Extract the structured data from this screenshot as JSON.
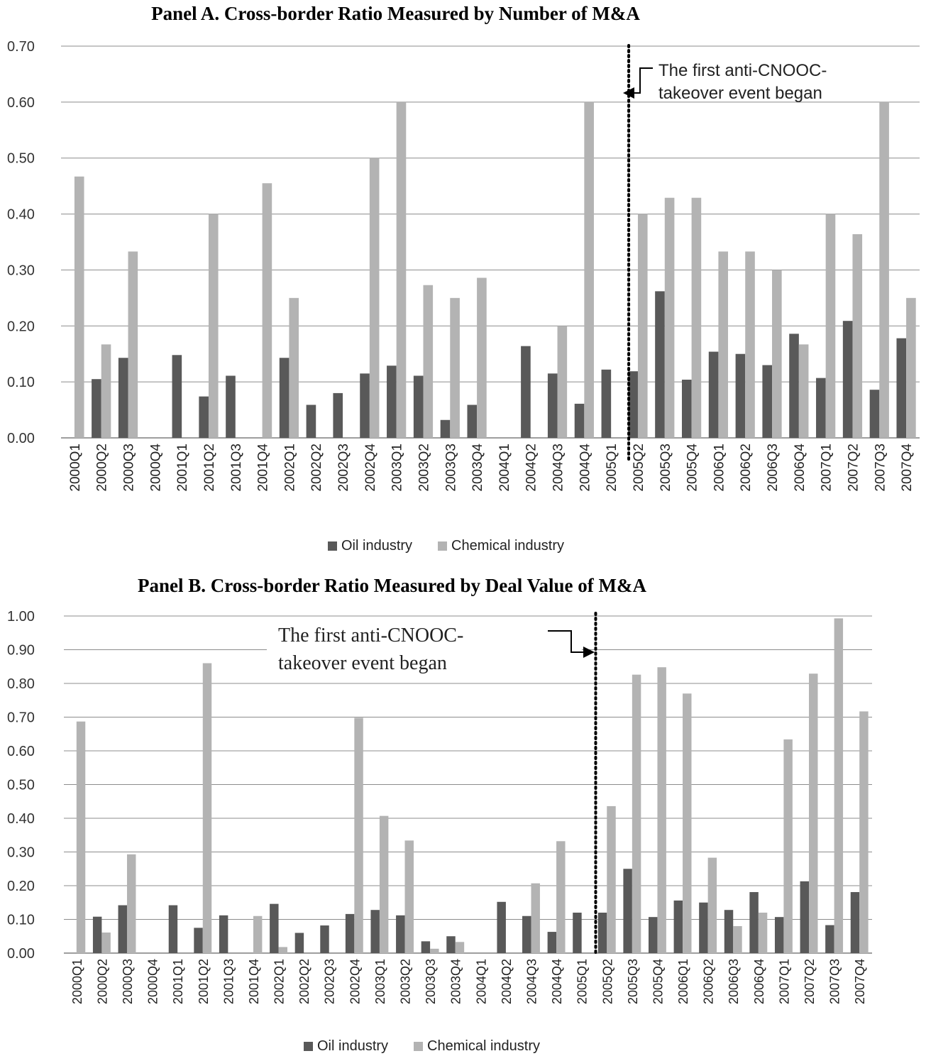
{
  "colors": {
    "oil": "#595959",
    "chemical": "#b3b3b3",
    "grid": "#8c8c8c",
    "axis": "#7f7f7f"
  },
  "legend": {
    "oil": "Oil industry",
    "chemical": "Chemical industry"
  },
  "panelA": {
    "title": "Panel A. Cross-border Ratio Measured by Number of M&A",
    "annotation": [
      "The first anti-CNOOC-",
      "takeover event began"
    ]
  },
  "panelB": {
    "title": "Panel B. Cross-border Ratio Measured by Deal Value of M&A",
    "annotation": [
      "The first anti-CNOOC-",
      "takeover event began"
    ]
  },
  "chart_data": [
    {
      "type": "bar",
      "title": "Panel A. Cross-border Ratio Measured by Number of M&A",
      "categories": [
        "2000Q1",
        "2000Q2",
        "2000Q3",
        "2000Q4",
        "2001Q1",
        "2001Q2",
        "2001Q3",
        "2001Q4",
        "2002Q1",
        "2002Q2",
        "2002Q3",
        "2002Q4",
        "2003Q1",
        "2003Q2",
        "2003Q3",
        "2003Q4",
        "2004Q1",
        "2004Q2",
        "2004Q3",
        "2004Q4",
        "2005Q1",
        "2005Q2",
        "2005Q3",
        "2005Q4",
        "2006Q1",
        "2006Q2",
        "2006Q3",
        "2006Q4",
        "2007Q1",
        "2007Q2",
        "2007Q3",
        "2007Q4"
      ],
      "series": [
        {
          "name": "Oil industry",
          "values": [
            0,
            0.105,
            0.143,
            0,
            0.148,
            0.074,
            0.111,
            0,
            0.143,
            0.059,
            0.08,
            0.115,
            0.129,
            0.111,
            0.032,
            0.059,
            0,
            0.164,
            0.115,
            0.061,
            0.122,
            0.119,
            0.262,
            0.104,
            0.154,
            0.15,
            0.13,
            0.186,
            0.107,
            0.209,
            0.086,
            0.178
          ]
        },
        {
          "name": "Chemical industry",
          "values": [
            0.467,
            0.167,
            0.333,
            0,
            0,
            0.4,
            0,
            0.455,
            0.25,
            0,
            0,
            0.5,
            0.6,
            0.273,
            0.25,
            0.286,
            0,
            0,
            0.2,
            0.6,
            0,
            0.4,
            0.429,
            0.429,
            0.333,
            0.333,
            0.3,
            0.167,
            0.4,
            0.364,
            0.6,
            0.25
          ]
        }
      ],
      "yticks": [
        "0.00",
        "0.10",
        "0.20",
        "0.30",
        "0.40",
        "0.50",
        "0.60",
        "0.70"
      ],
      "ylim": [
        0,
        0.7
      ],
      "event_after": "2005Q1",
      "grid": true,
      "legend_position": "bottom"
    },
    {
      "type": "bar",
      "title": "Panel B. Cross-border Ratio Measured by Deal Value of M&A",
      "categories": [
        "2000Q1",
        "2000Q2",
        "2000Q3",
        "2000Q4",
        "2001Q1",
        "2001Q2",
        "2001Q3",
        "2001Q4",
        "2002Q1",
        "2002Q2",
        "2002Q3",
        "2002Q4",
        "2003Q1",
        "2003Q2",
        "2003Q3",
        "2003Q4",
        "2004Q1",
        "2004Q2",
        "2004Q3",
        "2004Q4",
        "2005Q1",
        "2005Q2",
        "2005Q3",
        "2005Q4",
        "2006Q1",
        "2006Q2",
        "2006Q3",
        "2006Q4",
        "2007Q1",
        "2007Q2",
        "2007Q3",
        "2007Q4"
      ],
      "series": [
        {
          "name": "Oil industry",
          "values": [
            0,
            0.108,
            0.142,
            0,
            0.142,
            0.075,
            0.112,
            0,
            0.146,
            0.06,
            0.082,
            0.116,
            0.128,
            0.112,
            0.035,
            0.05,
            0,
            0.152,
            0.11,
            0.063,
            0.12,
            0.12,
            0.25,
            0.107,
            0.156,
            0.15,
            0.128,
            0.181,
            0.107,
            0.213,
            0.083,
            0.181
          ]
        },
        {
          "name": "Chemical industry",
          "values": [
            0.687,
            0.061,
            0.293,
            0,
            0,
            0.86,
            0,
            0.11,
            0.018,
            0,
            0,
            0.698,
            0.407,
            0.334,
            0.013,
            0.033,
            0,
            0,
            0.207,
            0.332,
            0,
            0.436,
            0.826,
            0.848,
            0.77,
            0.283,
            0.08,
            0.12,
            0.634,
            0.829,
            0.993,
            0.717
          ]
        }
      ],
      "yticks": [
        "0.00",
        "0.10",
        "0.20",
        "0.30",
        "0.40",
        "0.50",
        "0.60",
        "0.70",
        "0.80",
        "0.90",
        "1.00"
      ],
      "ylim": [
        0,
        1.0
      ],
      "event_after": "2005Q1",
      "grid": true,
      "legend_position": "bottom"
    }
  ]
}
